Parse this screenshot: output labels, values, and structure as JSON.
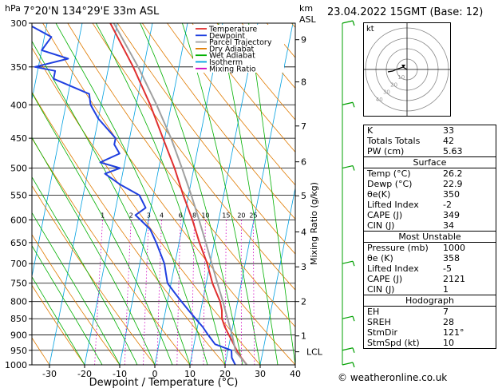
{
  "header": {
    "location": "7°20'N 134°29'E 33m ASL",
    "pressure_unit": "hPa",
    "height_unit_1": "km",
    "height_unit_2": "ASL",
    "date": "23.04.2022 15GMT (Base: 12)"
  },
  "footer": {
    "copyright": "© weatheronline.co.uk"
  },
  "legend": [
    {
      "label": "Temperature",
      "color": "#e03030"
    },
    {
      "label": "Dewpoint",
      "color": "#2040e0"
    },
    {
      "label": "Parcel Trajectory",
      "color": "#a0a0a0"
    },
    {
      "label": "Dry Adiabat",
      "color": "#e07b00"
    },
    {
      "label": "Wet Adiabat",
      "color": "#00b000"
    },
    {
      "label": "Isotherm",
      "color": "#00a0e0"
    },
    {
      "label": "Mixing Ratio",
      "color": "#d000c0"
    }
  ],
  "hodograph": {
    "unit": "kt",
    "ring_labels": [
      "10",
      "20",
      "30",
      "40"
    ]
  },
  "indices": {
    "general": [
      {
        "name": "K",
        "value": "33"
      },
      {
        "name": "Totals Totals",
        "value": "42"
      },
      {
        "name": "PW (cm)",
        "value": "5.63"
      }
    ],
    "surface": {
      "title": "Surface",
      "rows": [
        {
          "name": "Temp (°C)",
          "value": "26.2"
        },
        {
          "name": "Dewp (°C)",
          "value": "22.9"
        },
        {
          "name": "θe(K)",
          "value": "350"
        },
        {
          "name": "Lifted Index",
          "value": "-2"
        },
        {
          "name": "CAPE (J)",
          "value": "349"
        },
        {
          "name": "CIN (J)",
          "value": "34"
        }
      ]
    },
    "most_unstable": {
      "title": "Most Unstable",
      "rows": [
        {
          "name": "Pressure (mb)",
          "value": "1000"
        },
        {
          "name": "θe (K)",
          "value": "358"
        },
        {
          "name": "Lifted Index",
          "value": "-5"
        },
        {
          "name": "CAPE (J)",
          "value": "2121"
        },
        {
          "name": "CIN (J)",
          "value": "1"
        }
      ]
    },
    "hodograph": {
      "title": "Hodograph",
      "rows": [
        {
          "name": "EH",
          "value": "7"
        },
        {
          "name": "SREH",
          "value": "28"
        },
        {
          "name": "StmDir",
          "value": "121°"
        },
        {
          "name": "StmSpd (kt)",
          "value": "10"
        }
      ]
    }
  },
  "chart_data": {
    "type": "line",
    "title": "7°20'N 134°29'E 33m ASL",
    "xlabel": "Dewpoint / Temperature (°C)",
    "ylabel": "hPa",
    "y2label": "Mixing Ratio (g/kg)",
    "xlim": [
      -35,
      40
    ],
    "ylim": [
      1000,
      300
    ],
    "log_y": true,
    "skew": true,
    "x_ticks": [
      "-30",
      "-20",
      "-10",
      "0",
      "10",
      "20",
      "30",
      "40"
    ],
    "pressure_levels": [
      300,
      350,
      400,
      450,
      500,
      550,
      600,
      650,
      700,
      750,
      800,
      850,
      900,
      950,
      1000
    ],
    "pressure_labels": [
      "300",
      "350",
      "400",
      "450",
      "500",
      "550",
      "600",
      "650",
      "700",
      "750",
      "800",
      "850",
      "900",
      "950",
      "1000"
    ],
    "height_km": [
      {
        "p": 318,
        "label": "9"
      },
      {
        "p": 369,
        "label": "8"
      },
      {
        "p": 431,
        "label": "7"
      },
      {
        "p": 489,
        "label": "6"
      },
      {
        "p": 551,
        "label": "5"
      },
      {
        "p": 626,
        "label": "4"
      },
      {
        "p": 708,
        "label": "3"
      },
      {
        "p": 800,
        "label": "2"
      },
      {
        "p": 903,
        "label": "1"
      }
    ],
    "lcl": {
      "p": 955,
      "label": "LCL"
    },
    "mixing_ratio_labels": [
      "1",
      "2",
      "3",
      "4",
      "6",
      "8",
      "10",
      "15",
      "20",
      "25"
    ],
    "mixing_ratio_values": [
      1,
      2,
      3,
      4,
      6,
      8,
      10,
      15,
      20,
      25
    ],
    "series": [
      {
        "name": "Temperature",
        "color": "#e03030",
        "points": [
          [
            1000,
            26.2
          ],
          [
            975,
            24.2
          ],
          [
            950,
            22.5
          ],
          [
            925,
            21.0
          ],
          [
            900,
            19.4
          ],
          [
            875,
            17.8
          ],
          [
            850,
            16.5
          ],
          [
            825,
            16.0
          ],
          [
            800,
            15.0
          ],
          [
            775,
            13.4
          ],
          [
            750,
            11.8
          ],
          [
            700,
            9.2
          ],
          [
            650,
            5.8
          ],
          [
            600,
            2.5
          ],
          [
            550,
            -1.5
          ],
          [
            500,
            -5.5
          ],
          [
            450,
            -10.5
          ],
          [
            400,
            -16.0
          ],
          [
            350,
            -23.0
          ],
          [
            300,
            -32.0
          ]
        ]
      },
      {
        "name": "Dewpoint",
        "color": "#2040e0",
        "points": [
          [
            1000,
            22.9
          ],
          [
            975,
            21.5
          ],
          [
            950,
            21.0
          ],
          [
            930,
            16.0
          ],
          [
            900,
            13.5
          ],
          [
            875,
            11.5
          ],
          [
            850,
            9.0
          ],
          [
            825,
            6.5
          ],
          [
            800,
            4.0
          ],
          [
            775,
            1.5
          ],
          [
            750,
            -1.0
          ],
          [
            725,
            -2.0
          ],
          [
            700,
            -3.0
          ],
          [
            650,
            -6.5
          ],
          [
            620,
            -9.0
          ],
          [
            590,
            -14.0
          ],
          [
            575,
            -11.5
          ],
          [
            550,
            -14.0
          ],
          [
            530,
            -20.0
          ],
          [
            510,
            -25.0
          ],
          [
            500,
            -21.0
          ],
          [
            490,
            -27.0
          ],
          [
            475,
            -22.0
          ],
          [
            460,
            -24.0
          ],
          [
            450,
            -24.0
          ],
          [
            420,
            -30.0
          ],
          [
            400,
            -33.0
          ],
          [
            385,
            -34.0
          ],
          [
            365,
            -45.0
          ],
          [
            355,
            -45.0
          ],
          [
            350,
            -51.0
          ],
          [
            340,
            -42.0
          ],
          [
            330,
            -50.0
          ],
          [
            315,
            -48.0
          ],
          [
            300,
            -56.0
          ]
        ]
      },
      {
        "name": "Parcel Trajectory",
        "color": "#a0a0a0",
        "points": [
          [
            1000,
            26.2
          ],
          [
            955,
            22.3
          ],
          [
            900,
            20.3
          ],
          [
            850,
            18.1
          ],
          [
            800,
            15.8
          ],
          [
            750,
            13.2
          ],
          [
            700,
            10.5
          ],
          [
            650,
            7.6
          ],
          [
            600,
            4.4
          ],
          [
            550,
            0.8
          ],
          [
            500,
            -3.4
          ],
          [
            450,
            -8.2
          ],
          [
            400,
            -14.2
          ],
          [
            350,
            -21.6
          ],
          [
            300,
            -31.0
          ]
        ]
      }
    ],
    "wind_barbs_p": [
      300,
      400,
      500,
      700,
      850,
      950,
      1000
    ]
  }
}
